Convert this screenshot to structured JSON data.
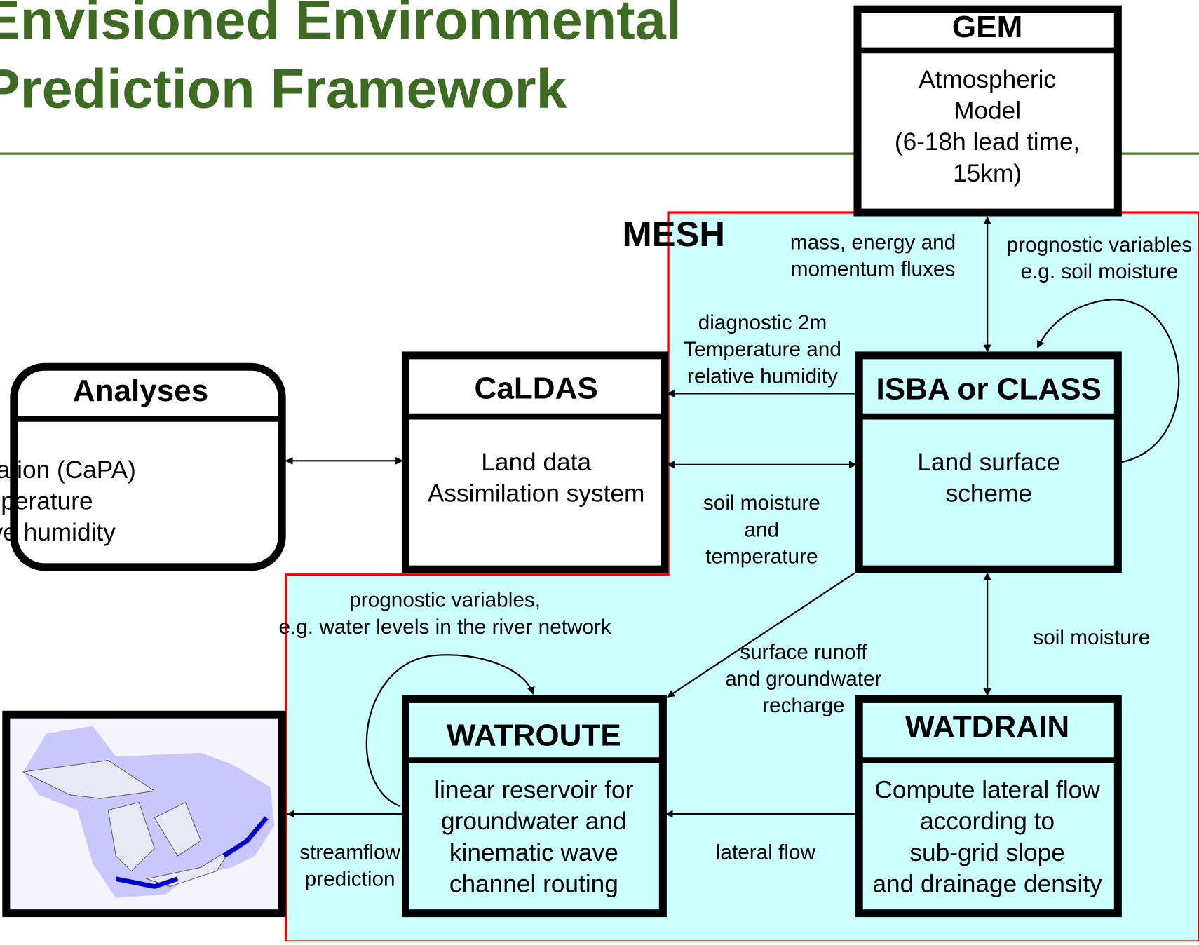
{
  "title": [
    "Envisioned Environmental",
    "Prediction Framework"
  ],
  "mesh_label": "MESH",
  "nodes": {
    "gem": {
      "header": "GEM",
      "body": [
        "Atmospheric",
        "Model",
        "(6-18h lead time,",
        "15km)"
      ]
    },
    "analyses": {
      "header": "Analyses",
      "body": [
        "• precipitation (CaPA)",
        "• temperature",
        "• relative humidity"
      ]
    },
    "caldas": {
      "header": "CaLDAS",
      "body": [
        "Land data",
        "Assimilation system"
      ]
    },
    "isba": {
      "header": "ISBA or CLASS",
      "body": [
        "Land surface",
        "scheme"
      ]
    },
    "watroute": {
      "header": "WATROUTE",
      "body": [
        "linear reservoir for",
        "groundwater and",
        "kinematic wave",
        "channel routing"
      ]
    },
    "watdrain": {
      "header": "WATDRAIN",
      "body": [
        "Compute lateral flow",
        "according to",
        "sub-grid slope",
        "and drainage density"
      ]
    }
  },
  "edge_labels": {
    "fluxes": [
      "mass, energy and",
      "momentum fluxes"
    ],
    "prognostic_soil": [
      "prognostic variables",
      "e.g. soil moisture"
    ],
    "diagnostic": [
      "diagnostic 2m",
      "Temperature and",
      "relative humidity"
    ],
    "soil_temp": [
      "soil moisture",
      "and",
      "temperature"
    ],
    "prognostic_water": [
      "prognostic variables,",
      "e.g. water levels in the river network"
    ],
    "soil_moisture": [
      "soil moisture"
    ],
    "runoff": [
      "surface runoff",
      "and groundwater",
      "recharge"
    ],
    "lateral": [
      "lateral flow"
    ],
    "streamflow": [
      "streamflow",
      "prediction"
    ]
  }
}
